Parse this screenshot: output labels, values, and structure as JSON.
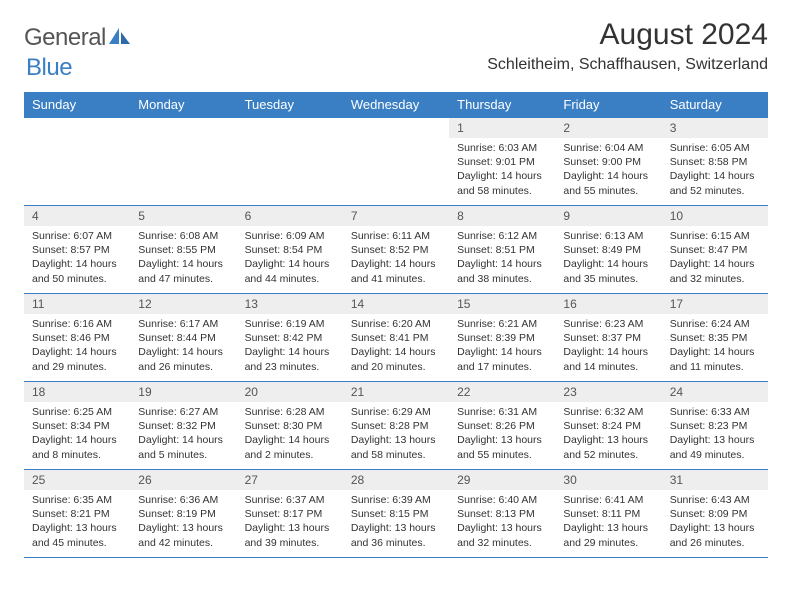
{
  "logo": {
    "text1": "General",
    "text2": "Blue"
  },
  "title": "August 2024",
  "location": "Schleitheim, Schaffhausen, Switzerland",
  "colors": {
    "header_bg": "#3a7fc4",
    "header_text": "#ffffff",
    "daynum_bg": "#eeeeee",
    "border": "#3a7fc4",
    "body_text": "#333333",
    "logo_gray": "#555555",
    "logo_blue": "#3a7fc4",
    "page_bg": "#ffffff"
  },
  "typography": {
    "title_fontsize": 30,
    "location_fontsize": 16,
    "header_fontsize": 13,
    "daynum_fontsize": 12,
    "details_fontsize": 10.5,
    "font_family": "Arial"
  },
  "weekdays": [
    "Sunday",
    "Monday",
    "Tuesday",
    "Wednesday",
    "Thursday",
    "Friday",
    "Saturday"
  ],
  "cells": [
    {
      "day": "",
      "sunrise": "",
      "sunset": "",
      "daylight": ""
    },
    {
      "day": "",
      "sunrise": "",
      "sunset": "",
      "daylight": ""
    },
    {
      "day": "",
      "sunrise": "",
      "sunset": "",
      "daylight": ""
    },
    {
      "day": "",
      "sunrise": "",
      "sunset": "",
      "daylight": ""
    },
    {
      "day": "1",
      "sunrise": "Sunrise: 6:03 AM",
      "sunset": "Sunset: 9:01 PM",
      "daylight": "Daylight: 14 hours and 58 minutes."
    },
    {
      "day": "2",
      "sunrise": "Sunrise: 6:04 AM",
      "sunset": "Sunset: 9:00 PM",
      "daylight": "Daylight: 14 hours and 55 minutes."
    },
    {
      "day": "3",
      "sunrise": "Sunrise: 6:05 AM",
      "sunset": "Sunset: 8:58 PM",
      "daylight": "Daylight: 14 hours and 52 minutes."
    },
    {
      "day": "4",
      "sunrise": "Sunrise: 6:07 AM",
      "sunset": "Sunset: 8:57 PM",
      "daylight": "Daylight: 14 hours and 50 minutes."
    },
    {
      "day": "5",
      "sunrise": "Sunrise: 6:08 AM",
      "sunset": "Sunset: 8:55 PM",
      "daylight": "Daylight: 14 hours and 47 minutes."
    },
    {
      "day": "6",
      "sunrise": "Sunrise: 6:09 AM",
      "sunset": "Sunset: 8:54 PM",
      "daylight": "Daylight: 14 hours and 44 minutes."
    },
    {
      "day": "7",
      "sunrise": "Sunrise: 6:11 AM",
      "sunset": "Sunset: 8:52 PM",
      "daylight": "Daylight: 14 hours and 41 minutes."
    },
    {
      "day": "8",
      "sunrise": "Sunrise: 6:12 AM",
      "sunset": "Sunset: 8:51 PM",
      "daylight": "Daylight: 14 hours and 38 minutes."
    },
    {
      "day": "9",
      "sunrise": "Sunrise: 6:13 AM",
      "sunset": "Sunset: 8:49 PM",
      "daylight": "Daylight: 14 hours and 35 minutes."
    },
    {
      "day": "10",
      "sunrise": "Sunrise: 6:15 AM",
      "sunset": "Sunset: 8:47 PM",
      "daylight": "Daylight: 14 hours and 32 minutes."
    },
    {
      "day": "11",
      "sunrise": "Sunrise: 6:16 AM",
      "sunset": "Sunset: 8:46 PM",
      "daylight": "Daylight: 14 hours and 29 minutes."
    },
    {
      "day": "12",
      "sunrise": "Sunrise: 6:17 AM",
      "sunset": "Sunset: 8:44 PM",
      "daylight": "Daylight: 14 hours and 26 minutes."
    },
    {
      "day": "13",
      "sunrise": "Sunrise: 6:19 AM",
      "sunset": "Sunset: 8:42 PM",
      "daylight": "Daylight: 14 hours and 23 minutes."
    },
    {
      "day": "14",
      "sunrise": "Sunrise: 6:20 AM",
      "sunset": "Sunset: 8:41 PM",
      "daylight": "Daylight: 14 hours and 20 minutes."
    },
    {
      "day": "15",
      "sunrise": "Sunrise: 6:21 AM",
      "sunset": "Sunset: 8:39 PM",
      "daylight": "Daylight: 14 hours and 17 minutes."
    },
    {
      "day": "16",
      "sunrise": "Sunrise: 6:23 AM",
      "sunset": "Sunset: 8:37 PM",
      "daylight": "Daylight: 14 hours and 14 minutes."
    },
    {
      "day": "17",
      "sunrise": "Sunrise: 6:24 AM",
      "sunset": "Sunset: 8:35 PM",
      "daylight": "Daylight: 14 hours and 11 minutes."
    },
    {
      "day": "18",
      "sunrise": "Sunrise: 6:25 AM",
      "sunset": "Sunset: 8:34 PM",
      "daylight": "Daylight: 14 hours and 8 minutes."
    },
    {
      "day": "19",
      "sunrise": "Sunrise: 6:27 AM",
      "sunset": "Sunset: 8:32 PM",
      "daylight": "Daylight: 14 hours and 5 minutes."
    },
    {
      "day": "20",
      "sunrise": "Sunrise: 6:28 AM",
      "sunset": "Sunset: 8:30 PM",
      "daylight": "Daylight: 14 hours and 2 minutes."
    },
    {
      "day": "21",
      "sunrise": "Sunrise: 6:29 AM",
      "sunset": "Sunset: 8:28 PM",
      "daylight": "Daylight: 13 hours and 58 minutes."
    },
    {
      "day": "22",
      "sunrise": "Sunrise: 6:31 AM",
      "sunset": "Sunset: 8:26 PM",
      "daylight": "Daylight: 13 hours and 55 minutes."
    },
    {
      "day": "23",
      "sunrise": "Sunrise: 6:32 AM",
      "sunset": "Sunset: 8:24 PM",
      "daylight": "Daylight: 13 hours and 52 minutes."
    },
    {
      "day": "24",
      "sunrise": "Sunrise: 6:33 AM",
      "sunset": "Sunset: 8:23 PM",
      "daylight": "Daylight: 13 hours and 49 minutes."
    },
    {
      "day": "25",
      "sunrise": "Sunrise: 6:35 AM",
      "sunset": "Sunset: 8:21 PM",
      "daylight": "Daylight: 13 hours and 45 minutes."
    },
    {
      "day": "26",
      "sunrise": "Sunrise: 6:36 AM",
      "sunset": "Sunset: 8:19 PM",
      "daylight": "Daylight: 13 hours and 42 minutes."
    },
    {
      "day": "27",
      "sunrise": "Sunrise: 6:37 AM",
      "sunset": "Sunset: 8:17 PM",
      "daylight": "Daylight: 13 hours and 39 minutes."
    },
    {
      "day": "28",
      "sunrise": "Sunrise: 6:39 AM",
      "sunset": "Sunset: 8:15 PM",
      "daylight": "Daylight: 13 hours and 36 minutes."
    },
    {
      "day": "29",
      "sunrise": "Sunrise: 6:40 AM",
      "sunset": "Sunset: 8:13 PM",
      "daylight": "Daylight: 13 hours and 32 minutes."
    },
    {
      "day": "30",
      "sunrise": "Sunrise: 6:41 AM",
      "sunset": "Sunset: 8:11 PM",
      "daylight": "Daylight: 13 hours and 29 minutes."
    },
    {
      "day": "31",
      "sunrise": "Sunrise: 6:43 AM",
      "sunset": "Sunset: 8:09 PM",
      "daylight": "Daylight: 13 hours and 26 minutes."
    }
  ]
}
